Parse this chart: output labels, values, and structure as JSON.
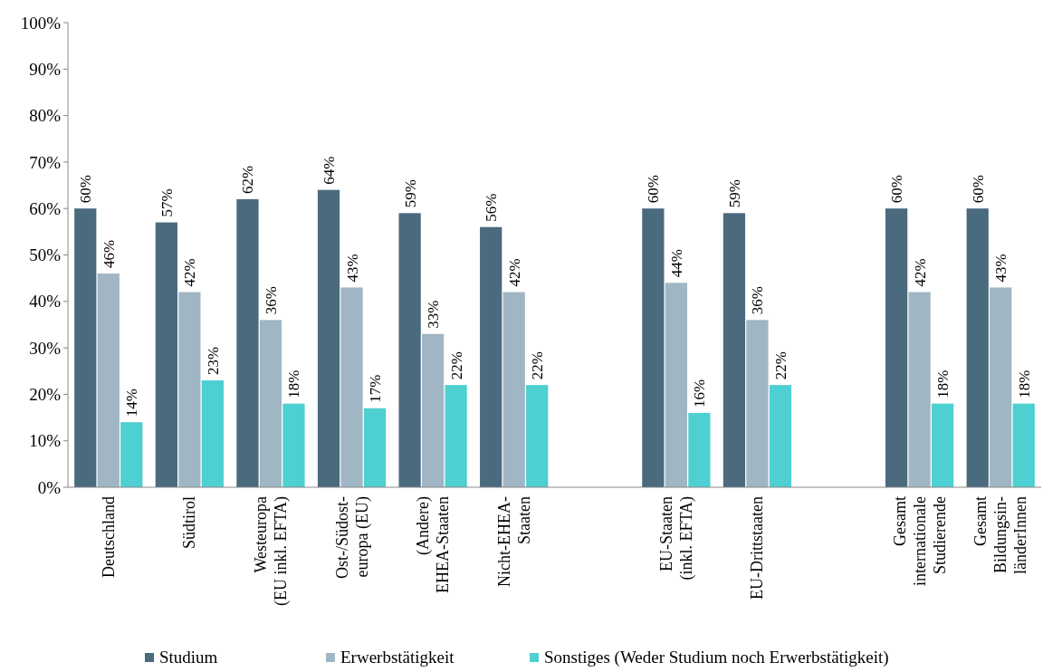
{
  "chart_data": {
    "type": "bar",
    "categories": [
      "Deutschland",
      "Südtirol",
      "Westeuropa\n(EU inkl. EFTA)",
      "Ost-/Südost-\neuropa (EU)",
      "(Andere)\nEHEA-Staaten",
      "Nicht-EHEA-\nStaaten",
      null,
      "EU-Staaten\n(inkl. EFTA)",
      "EU-Drittstaaten",
      null,
      "Gesamt\ninternationale\nStudierende",
      "Gesamt\nBildungsin-\nländerInnen"
    ],
    "series": [
      {
        "name": "Studium",
        "color": "#4a6a7e",
        "values": [
          60,
          57,
          62,
          64,
          59,
          56,
          null,
          60,
          59,
          null,
          60,
          60
        ],
        "value_labels": [
          "60%",
          "57%",
          "62%",
          "64%",
          "59%",
          "56%",
          null,
          "60%",
          "59%",
          null,
          "60%",
          "60%"
        ]
      },
      {
        "name": "Erwerbstätigkeit",
        "color": "#a0b6c4",
        "values": [
          46,
          42,
          36,
          43,
          33,
          42,
          null,
          44,
          36,
          null,
          42,
          43
        ],
        "value_labels": [
          "46%",
          "42%",
          "36%",
          "43%",
          "33%",
          "42%",
          null,
          "44%",
          "36%",
          null,
          "42%",
          "43%"
        ]
      },
      {
        "name": "Sonstiges (Weder Studium noch Erwerbstätigkeit)",
        "color": "#4ecfd1",
        "values": [
          14,
          23,
          18,
          17,
          22,
          22,
          null,
          16,
          22,
          null,
          18,
          18
        ],
        "value_labels": [
          "14%",
          "23%",
          "18%",
          "17%",
          "22%",
          "22%",
          null,
          "16%",
          "22%",
          null,
          "18%",
          "18%"
        ]
      }
    ],
    "ylim": [
      0,
      100
    ],
    "yticks": [
      {
        "value": 0,
        "label": "0%"
      },
      {
        "value": 10,
        "label": "10%"
      },
      {
        "value": 20,
        "label": "20%"
      },
      {
        "value": 30,
        "label": "30%"
      },
      {
        "value": 40,
        "label": "40%"
      },
      {
        "value": 50,
        "label": "50%"
      },
      {
        "value": 60,
        "label": "60%"
      },
      {
        "value": 70,
        "label": "70%"
      },
      {
        "value": 80,
        "label": "80%"
      },
      {
        "value": 90,
        "label": "90%"
      },
      {
        "value": 100,
        "label": "100%"
      }
    ],
    "legend": "bottom",
    "grid": false
  }
}
